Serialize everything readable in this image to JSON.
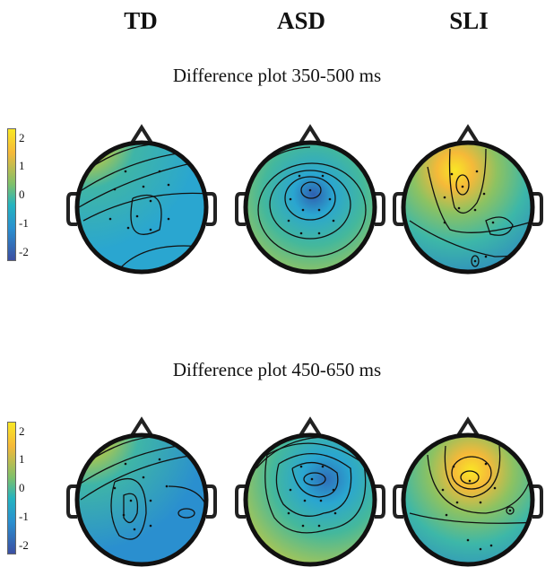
{
  "columns": [
    "TD",
    "ASD",
    "SLI"
  ],
  "rows": [
    {
      "title": "Difference plot 350-500 ms"
    },
    {
      "title": "Difference plot 450-650 ms"
    }
  ],
  "colorbar": {
    "ticks": [
      "2",
      "1",
      "0",
      "-1",
      "-2"
    ],
    "colors": [
      "#f9e725",
      "#f5b939",
      "#7ec06b",
      "#25b3c0",
      "#2a8fcf",
      "#3b4fa2"
    ]
  }
}
